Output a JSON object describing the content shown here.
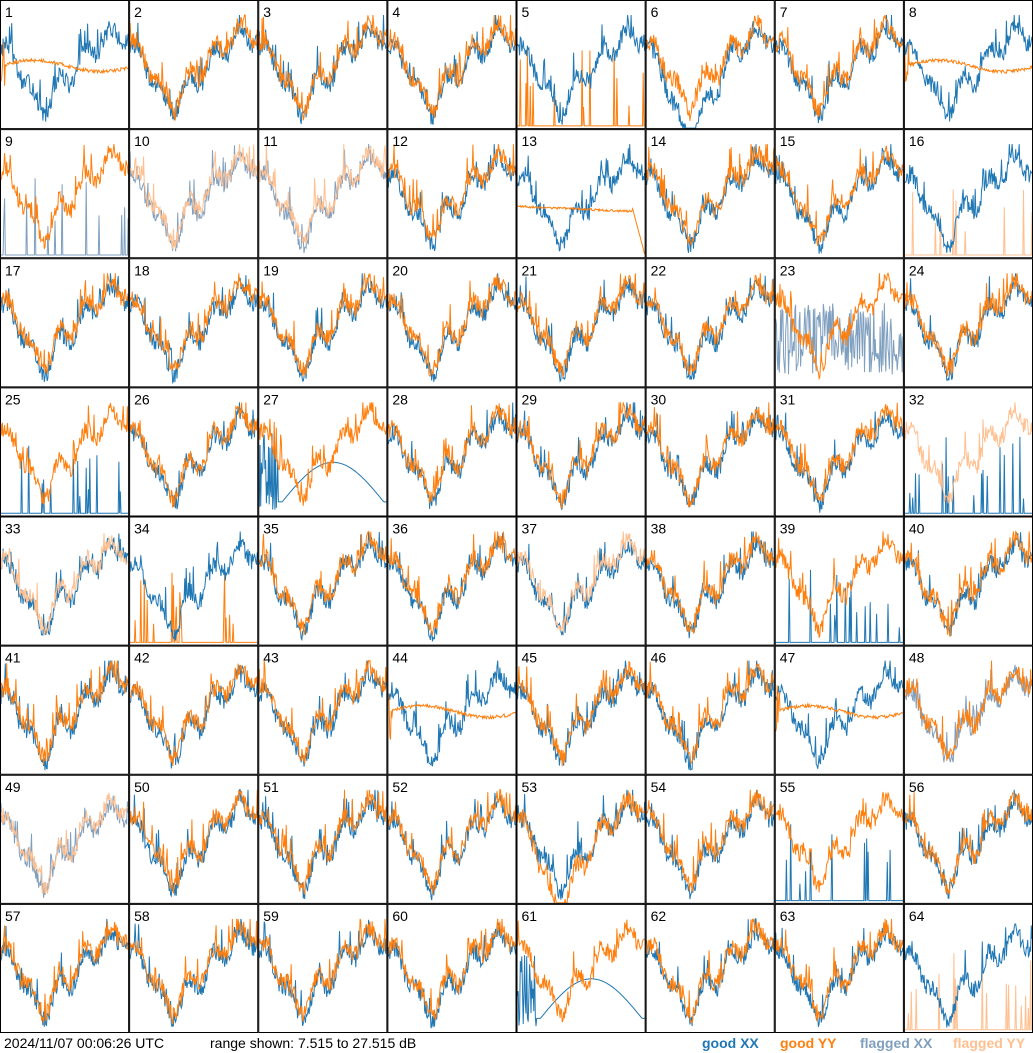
{
  "chart_data": {
    "type": "line",
    "timestamp": "2024/11/07 00:06:26 UTC",
    "range_text": "range shown: 7.515 to 27.515 dB",
    "ylim": [
      7.515,
      27.515
    ],
    "legend": [
      {
        "label": "good XX",
        "color": "#1f77b4"
      },
      {
        "label": "good YY",
        "color": "#ff7f0e"
      },
      {
        "label": "flagged XX",
        "color": "#7f9fbf"
      },
      {
        "label": "flagged YY",
        "color": "#ffbf8f"
      }
    ],
    "legend_position": "bottom-right",
    "colors": {
      "good_xx": "#1f77b4",
      "good_yy": "#ff7f0e",
      "flagged_xx": "#7f9fbf",
      "flagged_yy": "#ffbf8f"
    },
    "panels": [
      {
        "id": "1",
        "xx": "good",
        "yy": "good",
        "note": "yy flat"
      },
      {
        "id": "2",
        "xx": "good",
        "yy": "good"
      },
      {
        "id": "3",
        "xx": "good",
        "yy": "good"
      },
      {
        "id": "4",
        "xx": "good",
        "yy": "good"
      },
      {
        "id": "5",
        "xx": "good",
        "yy": "good",
        "note": "yy spikes"
      },
      {
        "id": "6",
        "xx": "good",
        "yy": "good",
        "note": "xx dip"
      },
      {
        "id": "7",
        "xx": "good",
        "yy": "good"
      },
      {
        "id": "8",
        "xx": "good",
        "yy": "good",
        "note": "yy flat"
      },
      {
        "id": "9",
        "xx": "flagged",
        "yy": "good",
        "note": "xx spikes"
      },
      {
        "id": "10",
        "xx": "flagged",
        "yy": "flagged"
      },
      {
        "id": "11",
        "xx": "flagged",
        "yy": "flagged"
      },
      {
        "id": "12",
        "xx": "good",
        "yy": "good"
      },
      {
        "id": "13",
        "xx": "good",
        "yy": "good",
        "note": "yy decay"
      },
      {
        "id": "14",
        "xx": "good",
        "yy": "good"
      },
      {
        "id": "15",
        "xx": "good",
        "yy": "good"
      },
      {
        "id": "16",
        "xx": "good",
        "yy": "flagged",
        "note": "yy spikes"
      },
      {
        "id": "17",
        "xx": "good",
        "yy": "good"
      },
      {
        "id": "18",
        "xx": "good",
        "yy": "good"
      },
      {
        "id": "19",
        "xx": "good",
        "yy": "good"
      },
      {
        "id": "20",
        "xx": "good",
        "yy": "good"
      },
      {
        "id": "21",
        "xx": "good",
        "yy": "good"
      },
      {
        "id": "22",
        "xx": "good",
        "yy": "good"
      },
      {
        "id": "23",
        "xx": "flagged",
        "yy": "good",
        "note": "xx noisy"
      },
      {
        "id": "24",
        "xx": "good",
        "yy": "good"
      },
      {
        "id": "25",
        "xx": "good",
        "yy": "good",
        "note": "xx spikes"
      },
      {
        "id": "26",
        "xx": "good",
        "yy": "good"
      },
      {
        "id": "27",
        "xx": "good",
        "yy": "good",
        "note": "xx arc"
      },
      {
        "id": "28",
        "xx": "good",
        "yy": "good"
      },
      {
        "id": "29",
        "xx": "good",
        "yy": "good"
      },
      {
        "id": "30",
        "xx": "good",
        "yy": "good"
      },
      {
        "id": "31",
        "xx": "good",
        "yy": "good"
      },
      {
        "id": "32",
        "xx": "good",
        "yy": "flagged",
        "note": "xx spikes"
      },
      {
        "id": "33",
        "xx": "good",
        "yy": "flagged"
      },
      {
        "id": "34",
        "xx": "good",
        "yy": "good",
        "note": "yy spikes"
      },
      {
        "id": "35",
        "xx": "good",
        "yy": "good"
      },
      {
        "id": "36",
        "xx": "good",
        "yy": "good"
      },
      {
        "id": "37",
        "xx": "good",
        "yy": "flagged"
      },
      {
        "id": "38",
        "xx": "good",
        "yy": "good"
      },
      {
        "id": "39",
        "xx": "good",
        "yy": "good",
        "note": "xx spikes"
      },
      {
        "id": "40",
        "xx": "good",
        "yy": "good"
      },
      {
        "id": "41",
        "xx": "good",
        "yy": "good"
      },
      {
        "id": "42",
        "xx": "good",
        "yy": "good"
      },
      {
        "id": "43",
        "xx": "good",
        "yy": "good"
      },
      {
        "id": "44",
        "xx": "good",
        "yy": "good",
        "note": "yy flat"
      },
      {
        "id": "45",
        "xx": "good",
        "yy": "good"
      },
      {
        "id": "46",
        "xx": "good",
        "yy": "good"
      },
      {
        "id": "47",
        "xx": "good",
        "yy": "good",
        "note": "yy flat"
      },
      {
        "id": "48",
        "xx": "flagged",
        "yy": "good"
      },
      {
        "id": "49",
        "xx": "flagged",
        "yy": "flagged"
      },
      {
        "id": "50",
        "xx": "good",
        "yy": "good"
      },
      {
        "id": "51",
        "xx": "good",
        "yy": "good"
      },
      {
        "id": "52",
        "xx": "good",
        "yy": "good"
      },
      {
        "id": "53",
        "xx": "good",
        "yy": "good",
        "note": "yy dip"
      },
      {
        "id": "54",
        "xx": "good",
        "yy": "good"
      },
      {
        "id": "55",
        "xx": "good",
        "yy": "good",
        "note": "xx spikes"
      },
      {
        "id": "56",
        "xx": "good",
        "yy": "good"
      },
      {
        "id": "57",
        "xx": "good",
        "yy": "good"
      },
      {
        "id": "58",
        "xx": "good",
        "yy": "good"
      },
      {
        "id": "59",
        "xx": "good",
        "yy": "good"
      },
      {
        "id": "60",
        "xx": "good",
        "yy": "good"
      },
      {
        "id": "61",
        "xx": "good",
        "yy": "good",
        "note": "xx arc"
      },
      {
        "id": "62",
        "xx": "good",
        "yy": "good"
      },
      {
        "id": "63",
        "xx": "good",
        "yy": "good"
      },
      {
        "id": "64",
        "xx": "good",
        "yy": "flagged",
        "note": "yy spikes"
      }
    ]
  }
}
